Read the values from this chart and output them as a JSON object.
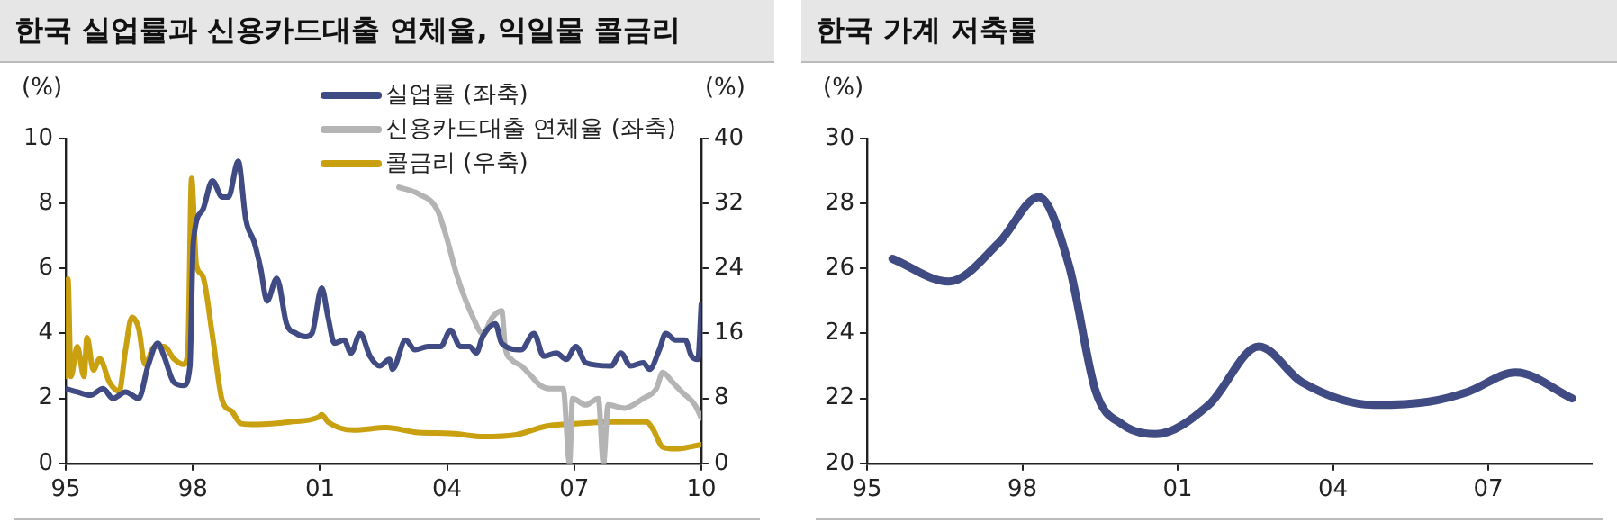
{
  "chart_data": [
    {
      "type": "line",
      "title": "한국 실업률과 신용카드대출 연체율, 익일물 콜금리",
      "ylabel": "(%)",
      "y2label": "(%)",
      "legend": "top right",
      "xlim": [
        1995,
        2010
      ],
      "xticks": [
        {
          "value": 1995,
          "label": "95"
        },
        {
          "value": 1998,
          "label": "98"
        },
        {
          "value": 2001,
          "label": "01"
        },
        {
          "value": 2004,
          "label": "04"
        },
        {
          "value": 2007,
          "label": "07"
        },
        {
          "value": 2010,
          "label": "10"
        }
      ],
      "ylim": [
        0,
        10
      ],
      "yticks": [
        0,
        2,
        4,
        6,
        8,
        10
      ],
      "y2lim": [
        0,
        40
      ],
      "y2ticks": [
        0,
        8,
        16,
        24,
        32,
        40
      ],
      "series": [
        {
          "name": "실업률 (좌축)",
          "color": "#3f4b82",
          "x": [
            1995.0,
            1995.27,
            1995.58,
            1995.88,
            1996.11,
            1996.41,
            1996.72,
            1996.94,
            1997.17,
            1997.32,
            1997.55,
            1997.78,
            1997.93,
            1998.01,
            1998.23,
            1998.46,
            1998.69,
            1998.84,
            1999.07,
            1999.25,
            1999.45,
            1999.6,
            1999.75,
            1999.98,
            2000.21,
            2000.44,
            2000.66,
            2000.81,
            2001.04,
            2001.19,
            2001.34,
            2001.57,
            2001.73,
            2001.95,
            2002.18,
            2002.41,
            2002.64,
            2002.71,
            2003.02,
            2003.24,
            2003.55,
            2003.85,
            2004.08,
            2004.31,
            2004.53,
            2004.69,
            2004.84,
            2005.14,
            2005.29,
            2005.75,
            2006.05,
            2006.28,
            2006.58,
            2006.81,
            2007.04,
            2007.27,
            2007.87,
            2008.1,
            2008.33,
            2008.63,
            2008.78,
            2009.01,
            2009.16,
            2009.39,
            2009.62,
            2009.77,
            2009.92,
            2010.0
          ],
          "values": [
            2.3,
            2.2,
            2.1,
            2.3,
            2.0,
            2.2,
            2.0,
            3.0,
            3.7,
            3.3,
            2.5,
            2.4,
            3.0,
            6.8,
            7.8,
            8.7,
            8.2,
            8.2,
            9.3,
            7.5,
            6.8,
            6.0,
            5.0,
            5.7,
            4.3,
            4.0,
            3.9,
            4.0,
            5.4,
            4.5,
            3.7,
            3.8,
            3.4,
            4.0,
            3.3,
            3.0,
            3.2,
            2.9,
            3.8,
            3.5,
            3.6,
            3.6,
            4.1,
            3.6,
            3.6,
            3.4,
            3.9,
            4.3,
            3.7,
            3.5,
            4.0,
            3.3,
            3.4,
            3.2,
            3.6,
            3.1,
            3.0,
            3.4,
            3.0,
            3.1,
            2.9,
            3.5,
            4.0,
            3.8,
            3.8,
            3.3,
            3.2,
            4.9
          ]
        },
        {
          "name": "신용카드대출 연체율 (좌축)",
          "color": "#b4b4b4",
          "x": [
            2002.86,
            2003.32,
            2003.77,
            2004.0,
            2004.23,
            2004.61,
            2004.84,
            2005.07,
            2005.29,
            2005.37,
            2005.52,
            2005.75,
            2005.98,
            2006.2,
            2006.43,
            2006.74,
            2006.89,
            2006.96,
            2007.27,
            2007.57,
            2007.69,
            2007.8,
            2008.18,
            2008.63,
            2008.94,
            2009.09,
            2009.32,
            2009.54,
            2009.85,
            2010.0
          ],
          "values": [
            8.5,
            8.3,
            7.8,
            6.9,
            5.8,
            4.5,
            4.0,
            4.5,
            4.7,
            3.6,
            3.2,
            3.0,
            2.7,
            2.4,
            2.3,
            2.3,
            0,
            2.0,
            1.8,
            2.0,
            0,
            1.8,
            1.7,
            2.0,
            2.3,
            2.8,
            2.5,
            2.2,
            1.8,
            1.4
          ]
        },
        {
          "name": "콜금리 (우축)",
          "color": "#c9a010",
          "axis": "y2",
          "x": [
            1995.0,
            1995.05,
            1995.12,
            1995.27,
            1995.43,
            1995.5,
            1995.65,
            1995.8,
            1996.03,
            1996.26,
            1996.41,
            1996.56,
            1996.72,
            1996.87,
            1997.1,
            1997.32,
            1997.55,
            1997.78,
            1997.88,
            1997.97,
            1998.08,
            1998.23,
            1998.46,
            1998.69,
            1998.92,
            1999.14,
            1999.52,
            2000.28,
            2000.97,
            2001.04,
            2001.19,
            2001.8,
            2002.56,
            2003.32,
            2004.08,
            2004.84,
            2005.6,
            2006.36,
            2007.11,
            2007.87,
            2008.71,
            2008.86,
            2009.09,
            2009.39,
            2010.0
          ],
          "values": [
            10.7,
            22.7,
            10.7,
            14.4,
            10.7,
            15.5,
            11.5,
            12.9,
            10.0,
            8.9,
            14.0,
            18.0,
            16.6,
            12.2,
            14.4,
            14.4,
            12.9,
            12.2,
            13.6,
            35.1,
            24.5,
            23.1,
            15.8,
            7.8,
            6.4,
            4.9,
            4.8,
            5.1,
            5.7,
            6.0,
            5.1,
            4.1,
            4.4,
            3.8,
            3.7,
            3.3,
            3.5,
            4.6,
            4.9,
            5.1,
            5.1,
            4.2,
            2.0,
            1.8,
            2.3
          ]
        }
      ]
    },
    {
      "type": "line",
      "title": "한국 가계 저축률",
      "ylabel": "(%)",
      "xlim": [
        1995,
        2009
      ],
      "xticks": [
        {
          "value": 1995,
          "label": "95"
        },
        {
          "value": 1998,
          "label": "98"
        },
        {
          "value": 2001,
          "label": "01"
        },
        {
          "value": 2004,
          "label": "04"
        },
        {
          "value": 2007,
          "label": "07"
        }
      ],
      "ylim": [
        20,
        30
      ],
      "yticks": [
        20,
        22,
        24,
        26,
        28,
        30
      ],
      "series": [
        {
          "color": "#3f4b82",
          "x": [
            1995.49,
            1996.58,
            1997.55,
            1998.32,
            1998.9,
            1999.42,
            1999.93,
            2000.57,
            2001.6,
            2002.57,
            2003.4,
            2004.82,
            2005.85,
            2006.6,
            2007.53,
            2008.62
          ],
          "values": [
            26.3,
            25.6,
            26.8,
            28.2,
            26.1,
            22.2,
            21.2,
            20.9,
            21.8,
            23.6,
            22.5,
            21.8,
            21.9,
            22.2,
            22.8,
            22.0
          ]
        }
      ]
    }
  ]
}
